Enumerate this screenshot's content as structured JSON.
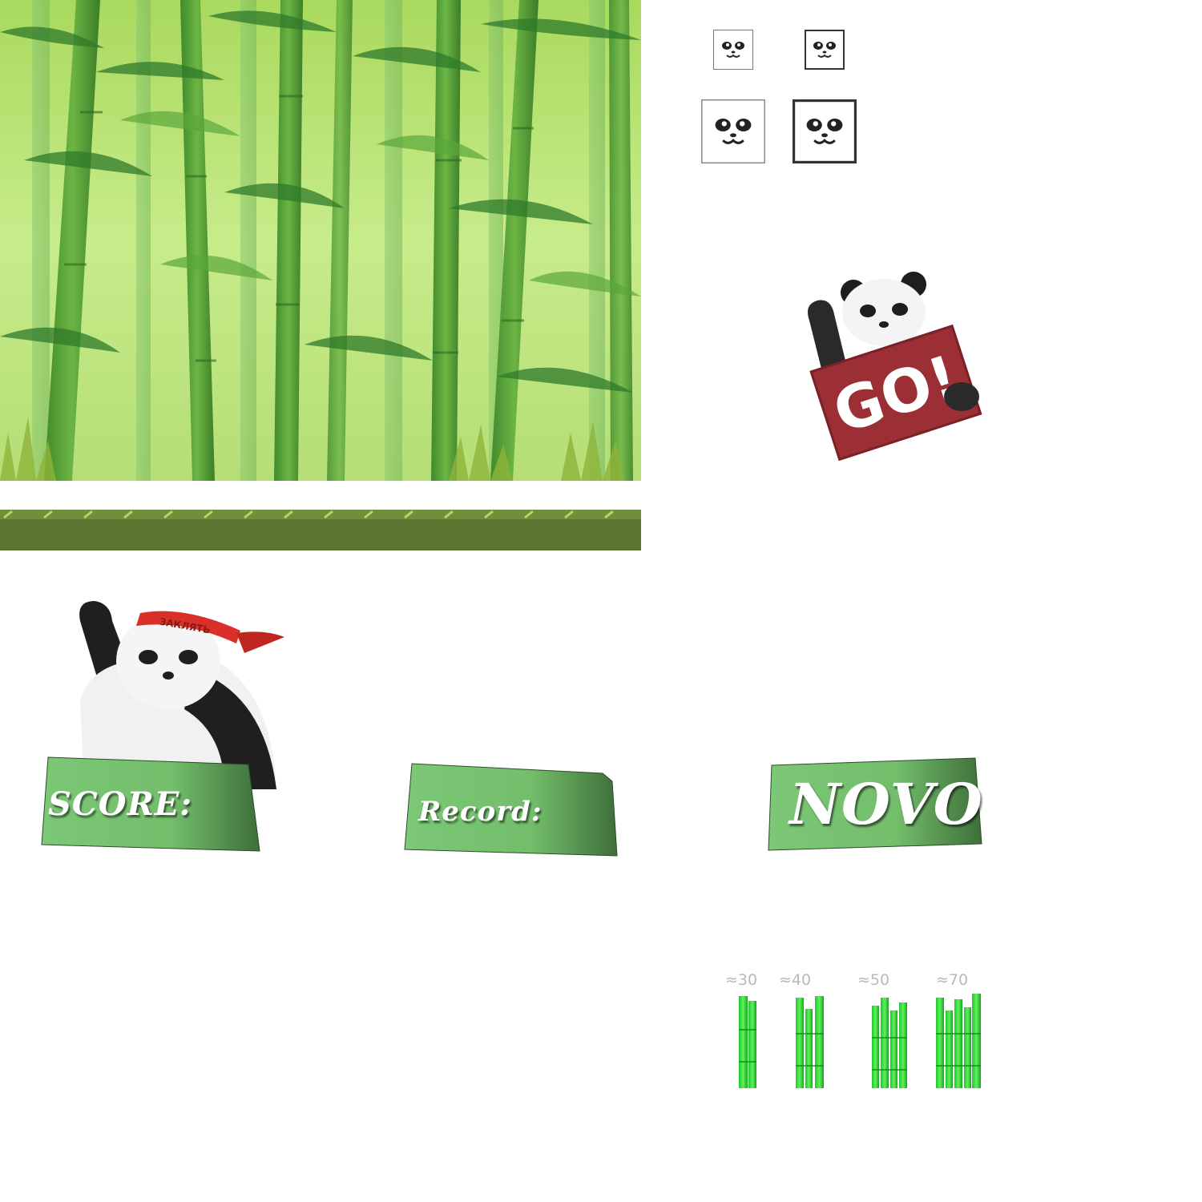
{
  "background": {
    "sky_color": "#c6ea86",
    "stalk_color": "#5fa33a"
  },
  "ground": {
    "color": "#5b7a33",
    "highlight": "#a7c95a"
  },
  "icons": [
    {
      "name": "panda-face-icon-small"
    },
    {
      "name": "panda-face-icon-small-pressed"
    },
    {
      "name": "panda-face-icon-large"
    },
    {
      "name": "panda-face-icon-large-pressed"
    }
  ],
  "go_sign": {
    "text": "GO!",
    "sign_color": "#9b2f35"
  },
  "panda_headband": {
    "text": "ЗАКЛЯТЬ",
    "color": "#d9302a"
  },
  "banners": {
    "score_label": "SCORE:",
    "record_label": "Record:",
    "new_label": "NOVO",
    "color": "#7cc877"
  },
  "bamboo_groups": [
    {
      "label": "≈30"
    },
    {
      "label": "≈40"
    },
    {
      "label": "≈50"
    },
    {
      "label": "≈70"
    }
  ]
}
